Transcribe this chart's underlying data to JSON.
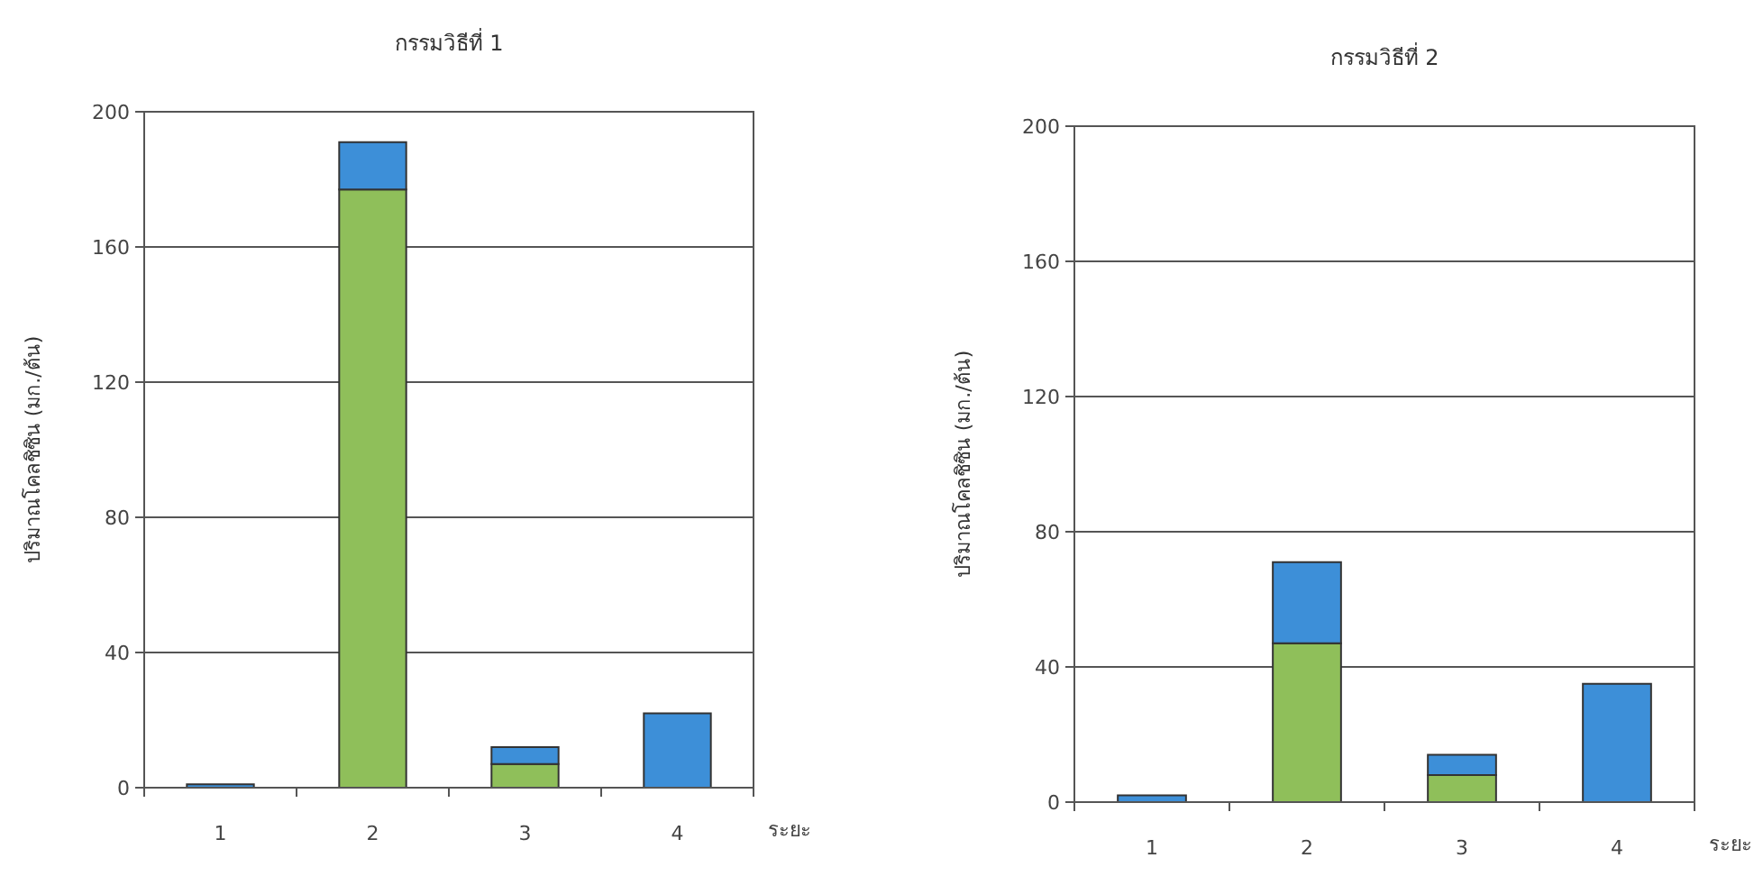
{
  "chart_data": [
    {
      "type": "bar",
      "title": "กรรมวิธีที่ 1",
      "xlabel": "ระยะ",
      "ylabel": "ปริมาณโคลชิซิน (มก./ต้น)",
      "categories": [
        "1",
        "2",
        "3",
        "4"
      ],
      "stacked": true,
      "series": [
        {
          "color": "#8fbf5a",
          "values": [
            0,
            177,
            7,
            0
          ]
        },
        {
          "color": "#3d8fd8",
          "values": [
            1,
            14,
            5,
            22
          ]
        }
      ],
      "ylim": [
        0,
        200
      ],
      "yticks": [
        0,
        40,
        80,
        120,
        160,
        200
      ],
      "grid": "y"
    },
    {
      "type": "bar",
      "title": "กรรมวิธีที่ 2",
      "xlabel": "ระยะ",
      "ylabel": "ปริมาณโคลชิซิน (มก./ต้น)",
      "categories": [
        "1",
        "2",
        "3",
        "4"
      ],
      "stacked": true,
      "series": [
        {
          "color": "#8fbf5a",
          "values": [
            0,
            47,
            8,
            0
          ]
        },
        {
          "color": "#3d8fd8",
          "values": [
            2,
            24,
            6,
            35
          ]
        }
      ],
      "ylim": [
        0,
        200
      ],
      "yticks": [
        0,
        40,
        80,
        120,
        160,
        200
      ],
      "grid": "y"
    }
  ]
}
